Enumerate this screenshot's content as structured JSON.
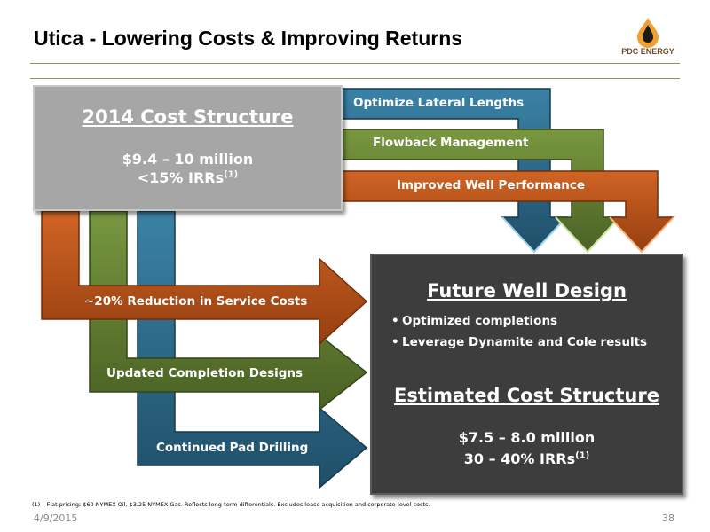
{
  "title": "Utica - Lowering Costs & Improving Returns",
  "logo": {
    "text": "PDC ENERGY"
  },
  "colors": {
    "blue": "#2b6684",
    "green": "#5d7a30",
    "orange": "#b9541a",
    "gray_box": "#a6a6a6",
    "dark_box": "#3d3d3d"
  },
  "current_cost": {
    "title": "2014 Cost Structure",
    "range": "$9.4 – 10 million",
    "irr": "<15% IRRs",
    "irr_note": "(1)"
  },
  "arrows_top": [
    {
      "label": "Optimize Lateral Lengths",
      "color": "blue"
    },
    {
      "label": "Flowback Management",
      "color": "green"
    },
    {
      "label": "Improved Well Performance",
      "color": "orange"
    }
  ],
  "arrows_left": [
    {
      "label": "~20% Reduction in Service Costs",
      "color": "orange"
    },
    {
      "label": "Updated Completion Designs",
      "color": "green"
    },
    {
      "label": "Continued Pad Drilling",
      "color": "blue"
    }
  ],
  "future": {
    "title": "Future Well Design",
    "bullets": [
      "Optimized completions",
      "Leverage Dynamite and Cole results"
    ],
    "cost_title": "Estimated Cost Structure",
    "range": "$7.5 – 8.0 million",
    "irr": "30 – 40% IRRs",
    "irr_note": "(1)"
  },
  "footnote": "(1) – Flat pricing; $60 NYMEX Oil, $3.25 NYMEX Gas. Reflects long-term differentials. Excludes lease acquisition and corporate-level costs.",
  "date": "4/9/2015",
  "page_number": "38"
}
